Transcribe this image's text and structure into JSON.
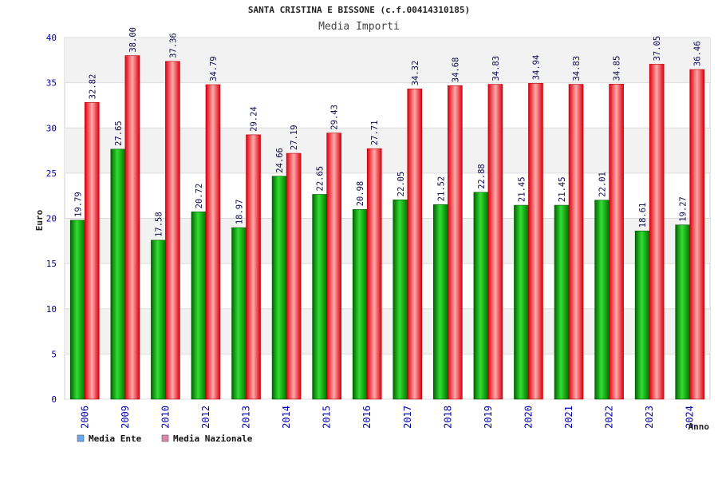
{
  "chart_data": {
    "type": "bar",
    "title": "SANTA CRISTINA E BISSONE (c.f.00414310185)",
    "subtitle": "Media Importi",
    "xlabel": "Anno",
    "ylabel": "Euro",
    "ylim": [
      0,
      40
    ],
    "yticks": [
      0,
      5,
      10,
      15,
      20,
      25,
      30,
      35,
      40
    ],
    "grid": true,
    "legend_position": "bottom-left",
    "categories": [
      "2006",
      "2009",
      "2010",
      "2012",
      "2013",
      "2014",
      "2015",
      "2016",
      "2017",
      "2018",
      "2019",
      "2020",
      "2021",
      "2022",
      "2023",
      "2024"
    ],
    "series": [
      {
        "name": "Media Ente",
        "color": "#00aa00",
        "values": [
          19.79,
          27.65,
          17.58,
          20.72,
          18.97,
          24.66,
          22.65,
          20.98,
          22.05,
          21.52,
          22.88,
          21.45,
          21.45,
          22.01,
          18.61,
          19.27
        ],
        "labels": [
          "19.79",
          "27.65",
          "17.58",
          "20.72",
          "18.97",
          "24.66",
          "22.65",
          "20.98",
          "22.05",
          "21.52",
          "22.88",
          "21.45",
          "21.45",
          "22.01",
          "18.61",
          "19.27"
        ]
      },
      {
        "name": "Media Nazionale",
        "color": "#ee1122",
        "values": [
          32.82,
          38.0,
          37.36,
          34.79,
          29.24,
          27.19,
          29.43,
          27.71,
          34.32,
          34.68,
          34.83,
          34.94,
          34.83,
          34.85,
          37.05,
          36.46
        ],
        "labels": [
          "32.82",
          "38.00",
          "37.36",
          "34.79",
          "29.24",
          "27.19",
          "29.43",
          "27.71",
          "34.32",
          "34.68",
          "34.83",
          "34.94",
          "34.83",
          "34.85",
          "37.05",
          "36.46"
        ]
      }
    ],
    "legend": [
      {
        "name": "Media Ente",
        "swatch_color": "#66aaee"
      },
      {
        "name": "Media Nazionale",
        "swatch_color": "#dd88aa"
      }
    ]
  }
}
